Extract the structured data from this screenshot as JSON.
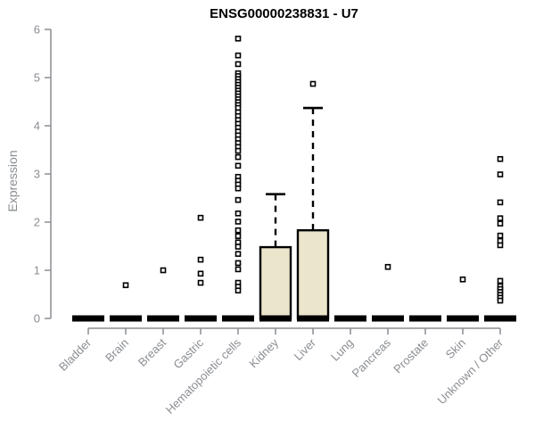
{
  "chart_data": {
    "type": "boxplot",
    "title": "ENSG00000238831 - U7",
    "ylabel": "Expression",
    "xlabel": "",
    "ylim": [
      0,
      6
    ],
    "yticks": [
      0,
      1,
      2,
      3,
      4,
      5,
      6
    ],
    "grid": false,
    "legend": false,
    "categories": [
      "Bladder",
      "Brain",
      "Breast",
      "Gastric",
      "Hematopoietic cells",
      "Kidney",
      "Liver",
      "Lung",
      "Pancreas",
      "Prostate",
      "Skin",
      "Unknown / Other"
    ],
    "series": [
      {
        "category": "Bladder",
        "q1": 0,
        "median": 0,
        "q3": 0,
        "whisker_low": 0,
        "whisker_high": 0,
        "outliers": []
      },
      {
        "category": "Brain",
        "q1": 0,
        "median": 0,
        "q3": 0,
        "whisker_low": 0,
        "whisker_high": 0,
        "outliers": [
          0.69
        ]
      },
      {
        "category": "Breast",
        "q1": 0,
        "median": 0,
        "q3": 0,
        "whisker_low": 0,
        "whisker_high": 0,
        "outliers": [
          1.0
        ]
      },
      {
        "category": "Gastric",
        "q1": 0,
        "median": 0,
        "q3": 0,
        "whisker_low": 0,
        "whisker_high": 0,
        "outliers": [
          2.09,
          1.22,
          0.93,
          0.74
        ]
      },
      {
        "category": "Hematopoietic cells",
        "q1": 0,
        "median": 0,
        "q3": 0,
        "whisker_low": 0,
        "whisker_high": 0,
        "outliers": [
          5.81,
          5.46,
          5.28,
          5.09,
          5.03,
          4.97,
          4.91,
          4.85,
          4.79,
          4.73,
          4.67,
          4.61,
          4.55,
          4.49,
          4.43,
          4.37,
          4.28,
          4.2,
          4.12,
          4.04,
          3.96,
          3.88,
          3.8,
          3.72,
          3.64,
          3.56,
          3.48,
          3.35,
          3.17,
          2.94,
          2.86,
          2.78,
          2.7,
          2.46,
          2.18,
          2.01,
          1.83,
          1.71,
          1.58,
          1.49,
          1.34,
          1.15,
          1.02,
          0.74,
          0.66,
          0.58
        ]
      },
      {
        "category": "Kidney",
        "q1": 0,
        "median": 0,
        "q3": 1.48,
        "whisker_low": 0,
        "whisker_high": 2.58,
        "outliers": []
      },
      {
        "category": "Liver",
        "q1": 0,
        "median": 0,
        "q3": 1.83,
        "whisker_low": 0,
        "whisker_high": 4.37,
        "outliers": [
          4.87
        ]
      },
      {
        "category": "Lung",
        "q1": 0,
        "median": 0,
        "q3": 0,
        "whisker_low": 0,
        "whisker_high": 0,
        "outliers": []
      },
      {
        "category": "Pancreas",
        "q1": 0,
        "median": 0,
        "q3": 0,
        "whisker_low": 0,
        "whisker_high": 0,
        "outliers": [
          1.07
        ]
      },
      {
        "category": "Prostate",
        "q1": 0,
        "median": 0,
        "q3": 0,
        "whisker_low": 0,
        "whisker_high": 0,
        "outliers": []
      },
      {
        "category": "Skin",
        "q1": 0,
        "median": 0,
        "q3": 0,
        "whisker_low": 0,
        "whisker_high": 0,
        "outliers": [
          0.81
        ]
      },
      {
        "category": "Unknown / Other",
        "q1": 0,
        "median": 0,
        "q3": 0,
        "whisker_low": 0,
        "whisker_high": 0,
        "outliers": [
          3.31,
          2.99,
          2.41,
          2.08,
          1.97,
          1.72,
          1.61,
          1.52,
          0.78,
          0.67,
          0.61,
          0.55,
          0.49,
          0.43,
          0.37
        ]
      }
    ],
    "colors": {
      "box_fill": "#ebe5cc",
      "box_border": "#000000",
      "median_bar": "#000000",
      "outlier": "#000000",
      "axis": "#8a8d92",
      "tick_label": "#8a8d92",
      "title": "#000000"
    }
  }
}
